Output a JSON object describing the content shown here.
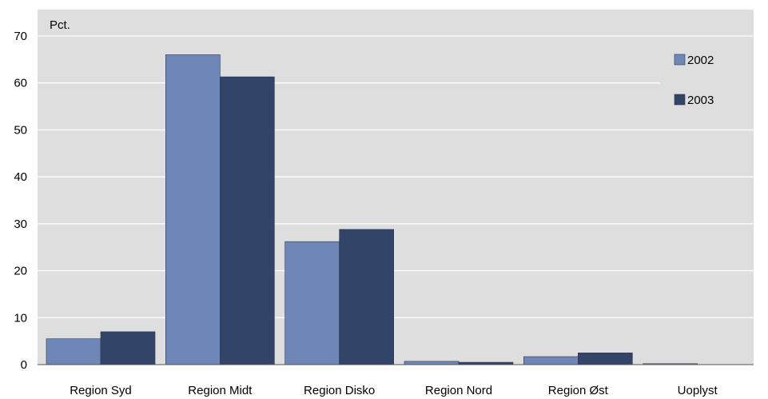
{
  "chart_data": {
    "type": "bar",
    "unit_label": "Pct.",
    "categories": [
      "Region Syd",
      "Region Midt",
      "Region Disko",
      "Region Nord",
      "Region Øst",
      "Uoplyst"
    ],
    "series": [
      {
        "name": "2002",
        "color": "#6f87b6",
        "values": [
          5.5,
          66.0,
          26.2,
          0.7,
          1.7,
          0.2
        ]
      },
      {
        "name": "2003",
        "color": "#334469",
        "values": [
          7.0,
          61.3,
          28.8,
          0.5,
          2.5,
          0.0
        ]
      }
    ],
    "ylim": [
      0,
      70
    ],
    "yticks": [
      "0",
      "10",
      "20",
      "30",
      "40",
      "50",
      "60",
      "70"
    ],
    "grid": true,
    "legend_position": "top-right",
    "plot_background": "#dedede",
    "gridline_color": "#ffffff"
  }
}
